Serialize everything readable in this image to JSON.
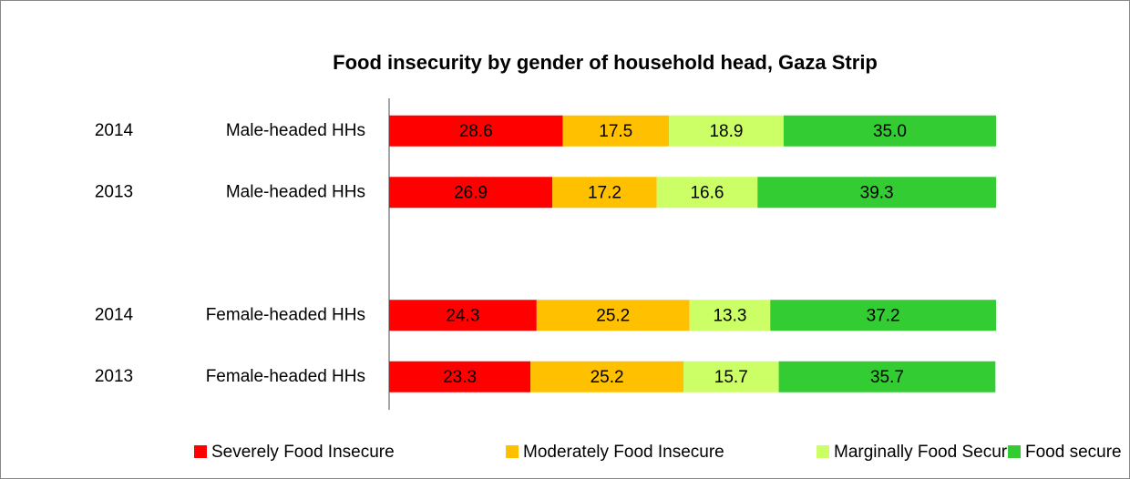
{
  "chart_data": {
    "type": "stacked-bar-horizontal",
    "title": "Food insecurity by gender of household head, Gaza Strip",
    "categories": [
      "2014",
      "2013",
      null,
      "2014",
      "2013"
    ],
    "groups": [
      "Male-headed HHs",
      "Male-headed HHs",
      null,
      "Female-headed HHs",
      "Female-headed HHs"
    ],
    "xlim": [
      0,
      100
    ],
    "series": [
      {
        "name": "Severely Food Insecure",
        "color": "#ff0000",
        "values": [
          28.6,
          26.9,
          null,
          24.3,
          23.3
        ],
        "value_labels": [
          "28.6",
          "26.9",
          null,
          "24.3",
          "23.3"
        ]
      },
      {
        "name": "Moderately Food Insecure",
        "color": "#ffc000",
        "values": [
          17.5,
          17.2,
          null,
          25.2,
          25.2
        ],
        "value_labels": [
          "17.5",
          "17.2",
          null,
          "25.2",
          "25.2"
        ]
      },
      {
        "name": "Marginally Food Secure",
        "color": "#ccff66",
        "values": [
          18.9,
          16.6,
          null,
          13.3,
          15.7
        ],
        "value_labels": [
          "18.9",
          "16.6",
          null,
          "13.3",
          "15.7"
        ]
      },
      {
        "name": "Food secure",
        "color": "#33cc33",
        "values": [
          35.0,
          39.3,
          null,
          37.2,
          35.7
        ],
        "value_labels": [
          "35.0",
          "39.3",
          null,
          "37.2",
          "35.7"
        ]
      }
    ],
    "legend": "bottom"
  }
}
